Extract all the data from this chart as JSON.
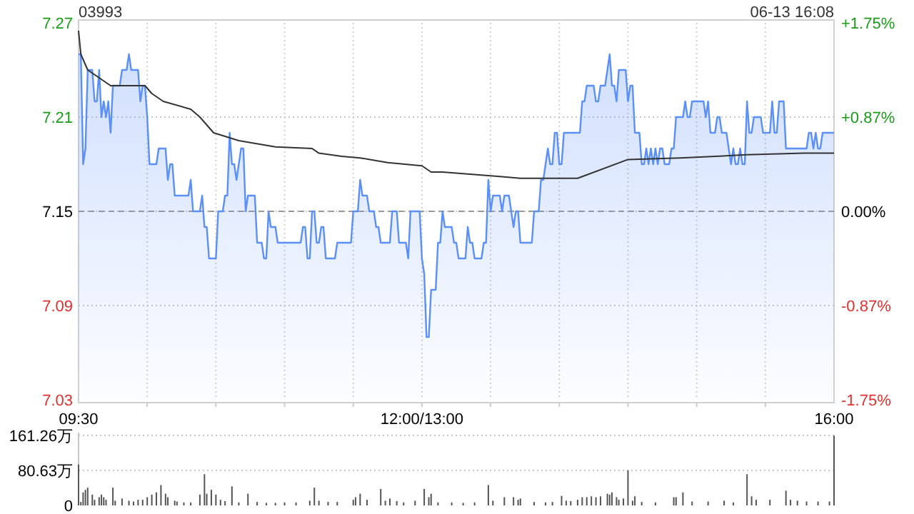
{
  "chart_data": [
    {
      "type": "line",
      "title": "03993",
      "annotations": [
        "06-13 16:08"
      ],
      "categories": [
        "09:30",
        null,
        null,
        null,
        null,
        null,
        null,
        null,
        null,
        null,
        null,
        null,
        null,
        null,
        null,
        null,
        null,
        null,
        null,
        null,
        null,
        null,
        null,
        null,
        null,
        null,
        null,
        null,
        null,
        null,
        null,
        null,
        null,
        null,
        null,
        null,
        null,
        null,
        null,
        null,
        null,
        null,
        null,
        null,
        null,
        null,
        null,
        null,
        null,
        null,
        null,
        null,
        null,
        null,
        null,
        null,
        null,
        null,
        null,
        null,
        null,
        null,
        null,
        null,
        null,
        null,
        null,
        null,
        null,
        null,
        null,
        null,
        null,
        null,
        null,
        null,
        null,
        null,
        null,
        null,
        null,
        null,
        null,
        null,
        null,
        null,
        null,
        null,
        null,
        null,
        null,
        null,
        null,
        null,
        null,
        null,
        null,
        null,
        null,
        null,
        null,
        null,
        null,
        null,
        null,
        null,
        null,
        null,
        null,
        null,
        null,
        null,
        null,
        null,
        null,
        null,
        null,
        null,
        null,
        null,
        null,
        null,
        null,
        null,
        null,
        null,
        null,
        null,
        null,
        null,
        null,
        null,
        null,
        null,
        null,
        null,
        null,
        null,
        null,
        null,
        null,
        null,
        null,
        null,
        null,
        null,
        null,
        null,
        null,
        null,
        "12:00/13:00",
        null,
        null,
        null,
        null,
        null,
        null,
        null,
        null,
        null,
        null,
        null,
        null,
        null,
        null,
        null,
        null,
        null,
        null,
        null,
        null,
        null,
        null,
        null,
        null,
        null,
        null,
        null,
        null,
        null,
        null,
        null,
        null,
        null,
        null,
        null,
        null,
        null,
        null,
        null,
        null,
        null,
        null,
        null,
        null,
        null,
        null,
        null,
        null,
        null,
        null,
        null,
        null,
        null,
        null,
        null,
        null,
        null,
        null,
        null,
        null,
        null,
        null,
        null,
        null,
        null,
        null,
        null,
        null,
        null,
        null,
        null,
        null,
        null,
        null,
        null,
        null,
        null,
        null,
        null,
        null,
        null,
        null,
        null,
        null,
        null,
        null,
        null,
        null,
        null,
        null,
        null,
        null,
        null,
        null,
        null,
        null,
        null,
        null,
        null,
        null,
        null,
        null,
        null,
        null,
        null,
        null,
        null,
        null,
        null,
        null,
        null,
        null,
        null,
        null,
        null,
        null,
        null,
        null,
        null,
        null,
        null,
        null,
        null,
        null,
        null,
        null,
        null,
        null,
        null,
        null,
        null,
        null,
        null,
        null,
        null,
        null,
        null,
        null,
        null,
        null,
        null,
        null,
        null,
        null,
        null,
        null,
        null,
        null,
        null,
        null,
        null,
        null,
        null,
        null,
        null,
        null,
        null,
        null,
        null,
        null,
        null,
        null,
        null,
        null,
        null,
        null,
        null,
        null,
        null,
        null,
        null,
        null,
        null,
        null,
        null,
        null,
        null,
        null,
        null,
        "16:00"
      ],
      "ylim": [
        7.03,
        7.27
      ],
      "yticks": [
        7.03,
        7.09,
        7.15,
        7.21,
        7.27
      ],
      "y2lim": [
        -1.75,
        1.75
      ],
      "y2ticks": [
        {
          "value": -1.75,
          "label": "-1.75%"
        },
        {
          "value": -0.875,
          "label": "-0.87%"
        },
        {
          "value": 0,
          "label": "0.00%"
        },
        {
          "value": 0.875,
          "label": "+0.87%"
        },
        {
          "value": 1.75,
          "label": "+1.75%"
        }
      ],
      "grid": true,
      "ref_lines": [
        {
          "axis": "y",
          "value": 7.15,
          "line_style": "dashed",
          "color": "#999999"
        }
      ],
      "series": [
        {
          "type": "area",
          "color": "#5b8ff9",
          "values": [
            7.25,
            7.25,
            7.18,
            7.19,
            7.24,
            7.24,
            7.24,
            7.22,
            7.22,
            7.24,
            7.21,
            7.22,
            7.21,
            7.22,
            7.2,
            7.23,
            7.23,
            7.23,
            7.23,
            7.24,
            7.24,
            7.24,
            7.25,
            7.24,
            7.24,
            7.24,
            7.24,
            7.22,
            7.23,
            7.23,
            7.21,
            7.18,
            7.18,
            7.18,
            7.18,
            7.19,
            7.19,
            7.19,
            7.19,
            7.17,
            7.18,
            7.18,
            7.16,
            7.16,
            7.16,
            7.16,
            7.16,
            7.16,
            7.16,
            7.17,
            7.15,
            7.15,
            7.15,
            7.15,
            7.16,
            7.14,
            7.14,
            7.12,
            7.12,
            7.12,
            7.12,
            7.15,
            7.15,
            7.15,
            7.16,
            7.16,
            7.2,
            7.18,
            7.18,
            7.17,
            7.18,
            7.19,
            7.19,
            7.15,
            7.16,
            7.16,
            7.16,
            7.16,
            7.13,
            7.13,
            7.13,
            7.12,
            7.12,
            7.15,
            7.14,
            7.14,
            7.14,
            7.13,
            7.13,
            7.13,
            7.13,
            7.13,
            7.13,
            7.13,
            7.13,
            7.13,
            7.13,
            7.13,
            7.14,
            7.14,
            7.12,
            7.12,
            7.15,
            7.15,
            7.13,
            7.13,
            7.14,
            7.14,
            7.12,
            7.12,
            7.12,
            7.12,
            7.12,
            7.13,
            7.13,
            7.13,
            7.13,
            7.13,
            7.13,
            7.13,
            7.15,
            7.15,
            7.15,
            7.17,
            7.16,
            7.16,
            7.16,
            7.15,
            7.15,
            7.15,
            7.14,
            7.14,
            7.13,
            7.13,
            7.13,
            7.13,
            7.13,
            7.15,
            7.15,
            7.15,
            7.13,
            7.13,
            7.13,
            7.13,
            7.12,
            7.15,
            7.15,
            7.15,
            7.15,
            7.15,
            7.12,
            7.11,
            7.07,
            7.07,
            7.1,
            7.1,
            7.1,
            7.13,
            7.13,
            7.15,
            7.14,
            7.14,
            7.14,
            7.14,
            7.13,
            7.13,
            7.12,
            7.12,
            7.12,
            7.12,
            7.14,
            7.13,
            7.13,
            7.12,
            7.12,
            7.12,
            7.12,
            7.13,
            7.13,
            7.17,
            7.15,
            7.16,
            7.16,
            7.16,
            7.16,
            7.15,
            7.16,
            7.16,
            7.16,
            7.15,
            7.14,
            7.15,
            7.15,
            7.13,
            7.13,
            7.13,
            7.13,
            7.13,
            7.13,
            7.15,
            7.15,
            7.15,
            7.17,
            7.17,
            7.18,
            7.19,
            7.18,
            7.18,
            7.2,
            7.2,
            7.18,
            7.18,
            7.2,
            7.2,
            7.2,
            7.2,
            7.2,
            7.2,
            7.2,
            7.2,
            7.22,
            7.22,
            7.23,
            7.23,
            7.23,
            7.23,
            7.22,
            7.22,
            7.23,
            7.23,
            7.23,
            7.24,
            7.25,
            7.23,
            7.23,
            7.22,
            7.24,
            7.24,
            7.24,
            7.24,
            7.22,
            7.23,
            7.23,
            7.2,
            7.2,
            7.2,
            7.18,
            7.18,
            7.19,
            7.18,
            7.19,
            7.18,
            7.19,
            7.18,
            7.19,
            7.19,
            7.18,
            7.18,
            7.18,
            7.19,
            7.19,
            7.21,
            7.21,
            7.21,
            7.21,
            7.22,
            7.21,
            7.21,
            7.22,
            7.22,
            7.22,
            7.22,
            7.22,
            7.22,
            7.21,
            7.22,
            7.2,
            7.2,
            7.2,
            7.21,
            7.21,
            7.2,
            7.2,
            7.2,
            7.19,
            7.18,
            7.19,
            7.18,
            7.18,
            7.19,
            7.18,
            7.18,
            7.22,
            7.2,
            7.2,
            7.21,
            7.21,
            7.21,
            7.21,
            7.2,
            7.2,
            7.2,
            7.2,
            7.22,
            7.2,
            7.2,
            7.22,
            7.22,
            7.22,
            7.19,
            7.19,
            7.19,
            7.19,
            7.19,
            7.19,
            7.19,
            7.19,
            7.19,
            7.19,
            7.2,
            7.2,
            7.19,
            7.2,
            7.19,
            7.19,
            7.2,
            7.2,
            7.2,
            7.2,
            7.2,
            7.2
          ]
        },
        {
          "type": "line",
          "color": "#333333",
          "values": [
            7.265,
            7.25,
            null,
            null,
            7.24,
            null,
            null,
            null,
            null,
            7.235,
            null,
            null,
            null,
            null,
            7.23,
            null,
            null,
            null,
            null,
            null,
            null,
            null,
            7.23,
            null,
            null,
            null,
            null,
            null,
            null,
            7.23,
            null,
            null,
            7.225,
            null,
            null,
            null,
            null,
            7.22,
            null,
            null,
            null,
            null,
            null,
            null,
            null,
            null,
            null,
            null,
            null,
            7.215,
            null,
            null,
            null,
            7.21,
            null,
            null,
            null,
            null,
            null,
            7.2,
            null,
            null,
            null,
            null,
            null,
            null,
            null,
            null,
            null,
            null,
            7.195,
            null,
            null,
            null,
            null,
            null,
            null,
            null,
            null,
            null,
            null,
            null,
            null,
            null,
            null,
            null,
            7.191,
            null,
            null,
            null,
            null,
            null,
            null,
            null,
            null,
            null,
            null,
            null,
            null,
            null,
            null,
            null,
            7.19,
            null,
            null,
            7.187,
            null,
            null,
            null,
            null,
            null,
            null,
            null,
            null,
            null,
            7.185,
            null,
            null,
            null,
            null,
            null,
            null,
            null,
            7.184,
            null,
            null,
            null,
            null,
            null,
            null,
            null,
            null,
            null,
            null,
            null,
            7.181,
            null,
            null,
            null,
            null,
            null,
            null,
            null,
            null,
            null,
            null,
            null,
            null,
            null,
            null,
            7.179,
            null,
            null,
            null,
            7.175,
            null,
            null,
            null,
            null,
            7.175,
            null,
            null,
            null,
            null,
            null,
            null,
            null,
            null,
            null,
            null,
            null,
            null,
            null,
            null,
            null,
            null,
            null,
            null,
            null,
            null,
            null,
            null,
            null,
            null,
            null,
            7.172,
            null,
            null,
            null,
            null,
            null,
            null,
            null,
            7.171,
            null,
            null,
            null,
            null,
            null,
            null,
            null,
            null,
            null,
            7.171,
            null,
            null,
            null,
            null,
            null,
            null,
            null,
            null,
            null,
            null,
            null,
            null,
            null,
            null,
            7.171,
            null,
            null,
            null,
            null,
            null,
            null,
            null,
            null,
            null,
            null,
            null,
            null,
            null,
            null,
            null,
            null,
            null,
            null,
            null,
            null,
            null,
            7.183,
            null,
            null,
            null,
            null,
            null,
            null,
            null,
            null,
            null,
            null,
            null,
            null,
            null,
            null,
            null,
            null,
            null,
            null,
            null,
            null,
            null,
            null,
            7.184,
            null,
            null,
            null,
            null,
            null,
            null,
            null,
            null,
            null,
            null,
            null,
            null,
            null,
            null,
            null,
            null,
            null,
            null,
            null,
            null,
            null,
            null,
            null,
            null,
            null,
            null,
            null,
            null,
            7.186,
            null,
            null,
            null,
            null,
            null,
            null,
            null,
            null,
            null,
            null,
            null,
            null,
            null,
            null,
            null,
            null,
            null,
            null,
            null,
            null,
            null,
            null,
            null,
            null,
            7.187,
            null,
            null,
            null,
            null,
            null,
            null,
            null,
            null,
            null,
            null,
            null,
            null,
            7.187
          ]
        }
      ]
    },
    {
      "type": "bar",
      "tick_labels": "y",
      "grid": "y",
      "categories": [
        null,
        null,
        null,
        null,
        null,
        null,
        null,
        null,
        null,
        null,
        null,
        null,
        null,
        null,
        null,
        null,
        null,
        null,
        null,
        null,
        null,
        null,
        null,
        null,
        null,
        null,
        null,
        null,
        null,
        null,
        null,
        null,
        null,
        null,
        null,
        null,
        null,
        null,
        null,
        null,
        null,
        null,
        null,
        null,
        null,
        null,
        null,
        null,
        null,
        null,
        null,
        null,
        null,
        null,
        null,
        null,
        null,
        null,
        null,
        null,
        null,
        null,
        null,
        null,
        null,
        null,
        null,
        null,
        null,
        null,
        null,
        null,
        null,
        null,
        null,
        null,
        null,
        null,
        null,
        null,
        null,
        null,
        null,
        null,
        null,
        null,
        null,
        null,
        null,
        null,
        null,
        null,
        null,
        null,
        null,
        null,
        null,
        null,
        null,
        null,
        null,
        null,
        null,
        null,
        null,
        null,
        null,
        null,
        null,
        null,
        null,
        null,
        null,
        null,
        null,
        null,
        null,
        null,
        null,
        null,
        null,
        null,
        null,
        null,
        null,
        null,
        null,
        null,
        null,
        null,
        null,
        null,
        null,
        null,
        null,
        null,
        null,
        null,
        null,
        null,
        null,
        null,
        null,
        null,
        null,
        null,
        null,
        null,
        null,
        null,
        null,
        null,
        null,
        null,
        null,
        null,
        null,
        null,
        null,
        null,
        null,
        null,
        null,
        null,
        null,
        null,
        null,
        null,
        null,
        null,
        null,
        null,
        null,
        null,
        null,
        null,
        null,
        null,
        null,
        null,
        null,
        null,
        null,
        null,
        null,
        null,
        null,
        null,
        null,
        null,
        null,
        null,
        null,
        null,
        null,
        null,
        null,
        null,
        null,
        null,
        null,
        null,
        null,
        null,
        null,
        null,
        null,
        null,
        null,
        null,
        null,
        null,
        null,
        null,
        null,
        null,
        null,
        null,
        null,
        null,
        null,
        null,
        null,
        null,
        null,
        null,
        null,
        null,
        null,
        null,
        null,
        null,
        null,
        null,
        null,
        null,
        null,
        null,
        null,
        null,
        null,
        null,
        null,
        null,
        null,
        null,
        null,
        null,
        null,
        null,
        null,
        null,
        null,
        null,
        null,
        null,
        null,
        null,
        null,
        null,
        null,
        null,
        null,
        null,
        null,
        null,
        null,
        null,
        null,
        null,
        null,
        null,
        null,
        null,
        null,
        null,
        null,
        null,
        null,
        null,
        null,
        null,
        null,
        null,
        null,
        null,
        null,
        null,
        null,
        null,
        null,
        null,
        null,
        null,
        null,
        null,
        null,
        null,
        null,
        null,
        null,
        null,
        null,
        null,
        null,
        null,
        null,
        null,
        null,
        null,
        null,
        null,
        null,
        null,
        null,
        null,
        null,
        null,
        null,
        null,
        null,
        null,
        null,
        null,
        null,
        null,
        null,
        null,
        null,
        null,
        null
      ],
      "ylim": [
        0,
        161.26
      ],
      "yticks": [
        0,
        {
          "value": 80.63,
          "label": "80.63万"
        },
        {
          "value": 161.26,
          "label": "161.26万"
        }
      ],
      "series": [
        {
          "color": "#555555",
          "values": [
            94,
            8,
            30,
            36,
            41,
            null,
            25,
            13,
            null,
            19,
            25,
            19,
            13,
            null,
            null,
            41,
            11,
            null,
            null,
            16,
            null,
            null,
            11,
            null,
            9,
            null,
            13,
            null,
            13,
            null,
            19,
            null,
            25,
            null,
            30,
            null,
            47,
            null,
            27,
            19,
            null,
            null,
            11,
            9,
            null,
            null,
            7,
            null,
            null,
            7,
            null,
            null,
            null,
            25,
            null,
            72,
            27,
            null,
            36,
            null,
            25,
            null,
            13,
            null,
            10,
            null,
            null,
            44,
            null,
            null,
            7,
            null,
            null,
            null,
            27,
            null,
            null,
            null,
            8,
            null,
            null,
            null,
            6,
            null,
            null,
            null,
            6,
            null,
            null,
            null,
            7,
            null,
            null,
            null,
            null,
            7,
            null,
            null,
            null,
            null,
            null,
            11,
            null,
            41,
            null,
            11,
            null,
            null,
            null,
            8,
            null,
            null,
            null,
            8,
            null,
            null,
            null,
            null,
            null,
            null,
            13,
            19,
            null,
            27,
            null,
            null,
            13,
            null,
            null,
            null,
            null,
            null,
            38,
            null,
            11,
            null,
            16,
            null,
            null,
            10,
            null,
            null,
            7,
            null,
            null,
            null,
            null,
            11,
            null,
            null,
            null,
            38,
            null,
            19,
            27,
            null,
            null,
            7,
            null,
            null,
            null,
            null,
            null,
            7,
            null,
            null,
            null,
            null,
            6,
            null,
            null,
            null,
            null,
            7,
            null,
            null,
            null,
            null,
            null,
            47,
            null,
            11,
            null,
            null,
            null,
            null,
            19,
            null,
            null,
            null,
            19,
            null,
            13,
            16,
            null,
            null,
            null,
            null,
            null,
            8,
            null,
            null,
            null,
            null,
            7,
            null,
            null,
            8,
            null,
            null,
            null,
            22,
            null,
            11,
            null,
            10,
            null,
            null,
            13,
            null,
            19,
            null,
            19,
            null,
            21,
            null,
            19,
            null,
            21,
            null,
            null,
            27,
            25,
            30,
            null,
            19,
            13,
            null,
            16,
            null,
            81,
            null,
            11,
            21,
            null,
            null,
            8,
            null,
            null,
            null,
            null,
            null,
            7,
            null,
            null,
            null,
            null,
            null,
            null,
            null,
            19,
            19,
            null,
            null,
            30,
            null,
            null,
            null,
            9,
            null,
            null,
            null,
            null,
            null,
            null,
            9,
            null,
            null,
            null,
            null,
            null,
            null,
            11,
            null,
            null,
            null,
            7,
            null,
            null,
            null,
            null,
            null,
            72,
            null,
            21,
            null,
            13,
            null,
            null,
            null,
            null,
            null,
            13,
            null,
            null,
            null,
            null,
            null,
            null,
            34,
            null,
            13,
            null,
            null,
            11,
            null,
            null,
            null,
            9,
            null,
            null,
            null,
            null,
            9,
            null,
            null,
            null,
            null,
            9,
            null,
            161
          ]
        }
      ]
    }
  ]
}
